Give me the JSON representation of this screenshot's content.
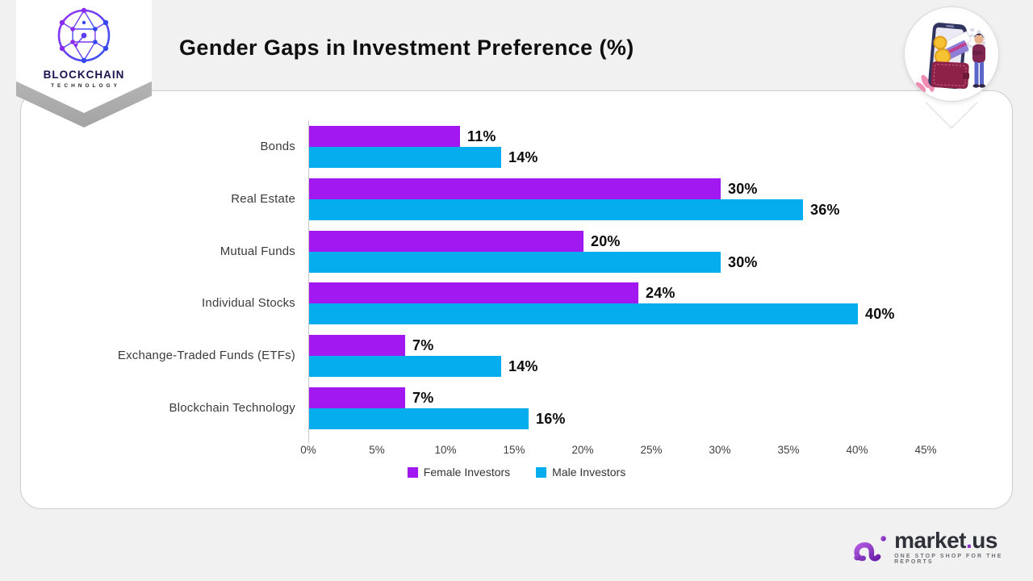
{
  "page": {
    "background": "#F1F1F2"
  },
  "header": {
    "title": "Gender Gaps in Investment Preference (%)",
    "badge": {
      "line1": "BLOCKCHAIN",
      "line2": "TECHNOLOGY",
      "icon": "blockchain-network-icon",
      "text_color": "#17134D"
    },
    "hero_icon": "mobile-wallet-pin-illustration"
  },
  "chart_data": {
    "type": "bar",
    "orientation": "horizontal",
    "title": "Gender Gaps in Investment Preference (%)",
    "categories": [
      "Bonds",
      "Real Estate",
      "Mutual Funds",
      "Individual Stocks",
      "Exchange-Traded Funds (ETFs)",
      "Blockchain Technology"
    ],
    "series": [
      {
        "name": "Female Investors",
        "color": "#A118F0",
        "values": [
          11,
          30,
          20,
          24,
          7,
          7
        ]
      },
      {
        "name": "Male Investors",
        "color": "#06ADEE",
        "values": [
          14,
          36,
          30,
          40,
          14,
          16
        ]
      }
    ],
    "x_ticks": [
      "0%",
      "5%",
      "10%",
      "15%",
      "20%",
      "25%",
      "30%",
      "35%",
      "40%",
      "45%"
    ],
    "xlim": [
      0,
      45
    ],
    "value_suffix": "%",
    "grid": false,
    "legend_position": "bottom"
  },
  "footer": {
    "brand": {
      "market": "market",
      "dot": ".",
      "us": "us",
      "tagline": "ONE STOP SHOP FOR THE REPORTS",
      "icon": "market-us-logo-icon",
      "accent_color": "#8B2FC9"
    }
  }
}
